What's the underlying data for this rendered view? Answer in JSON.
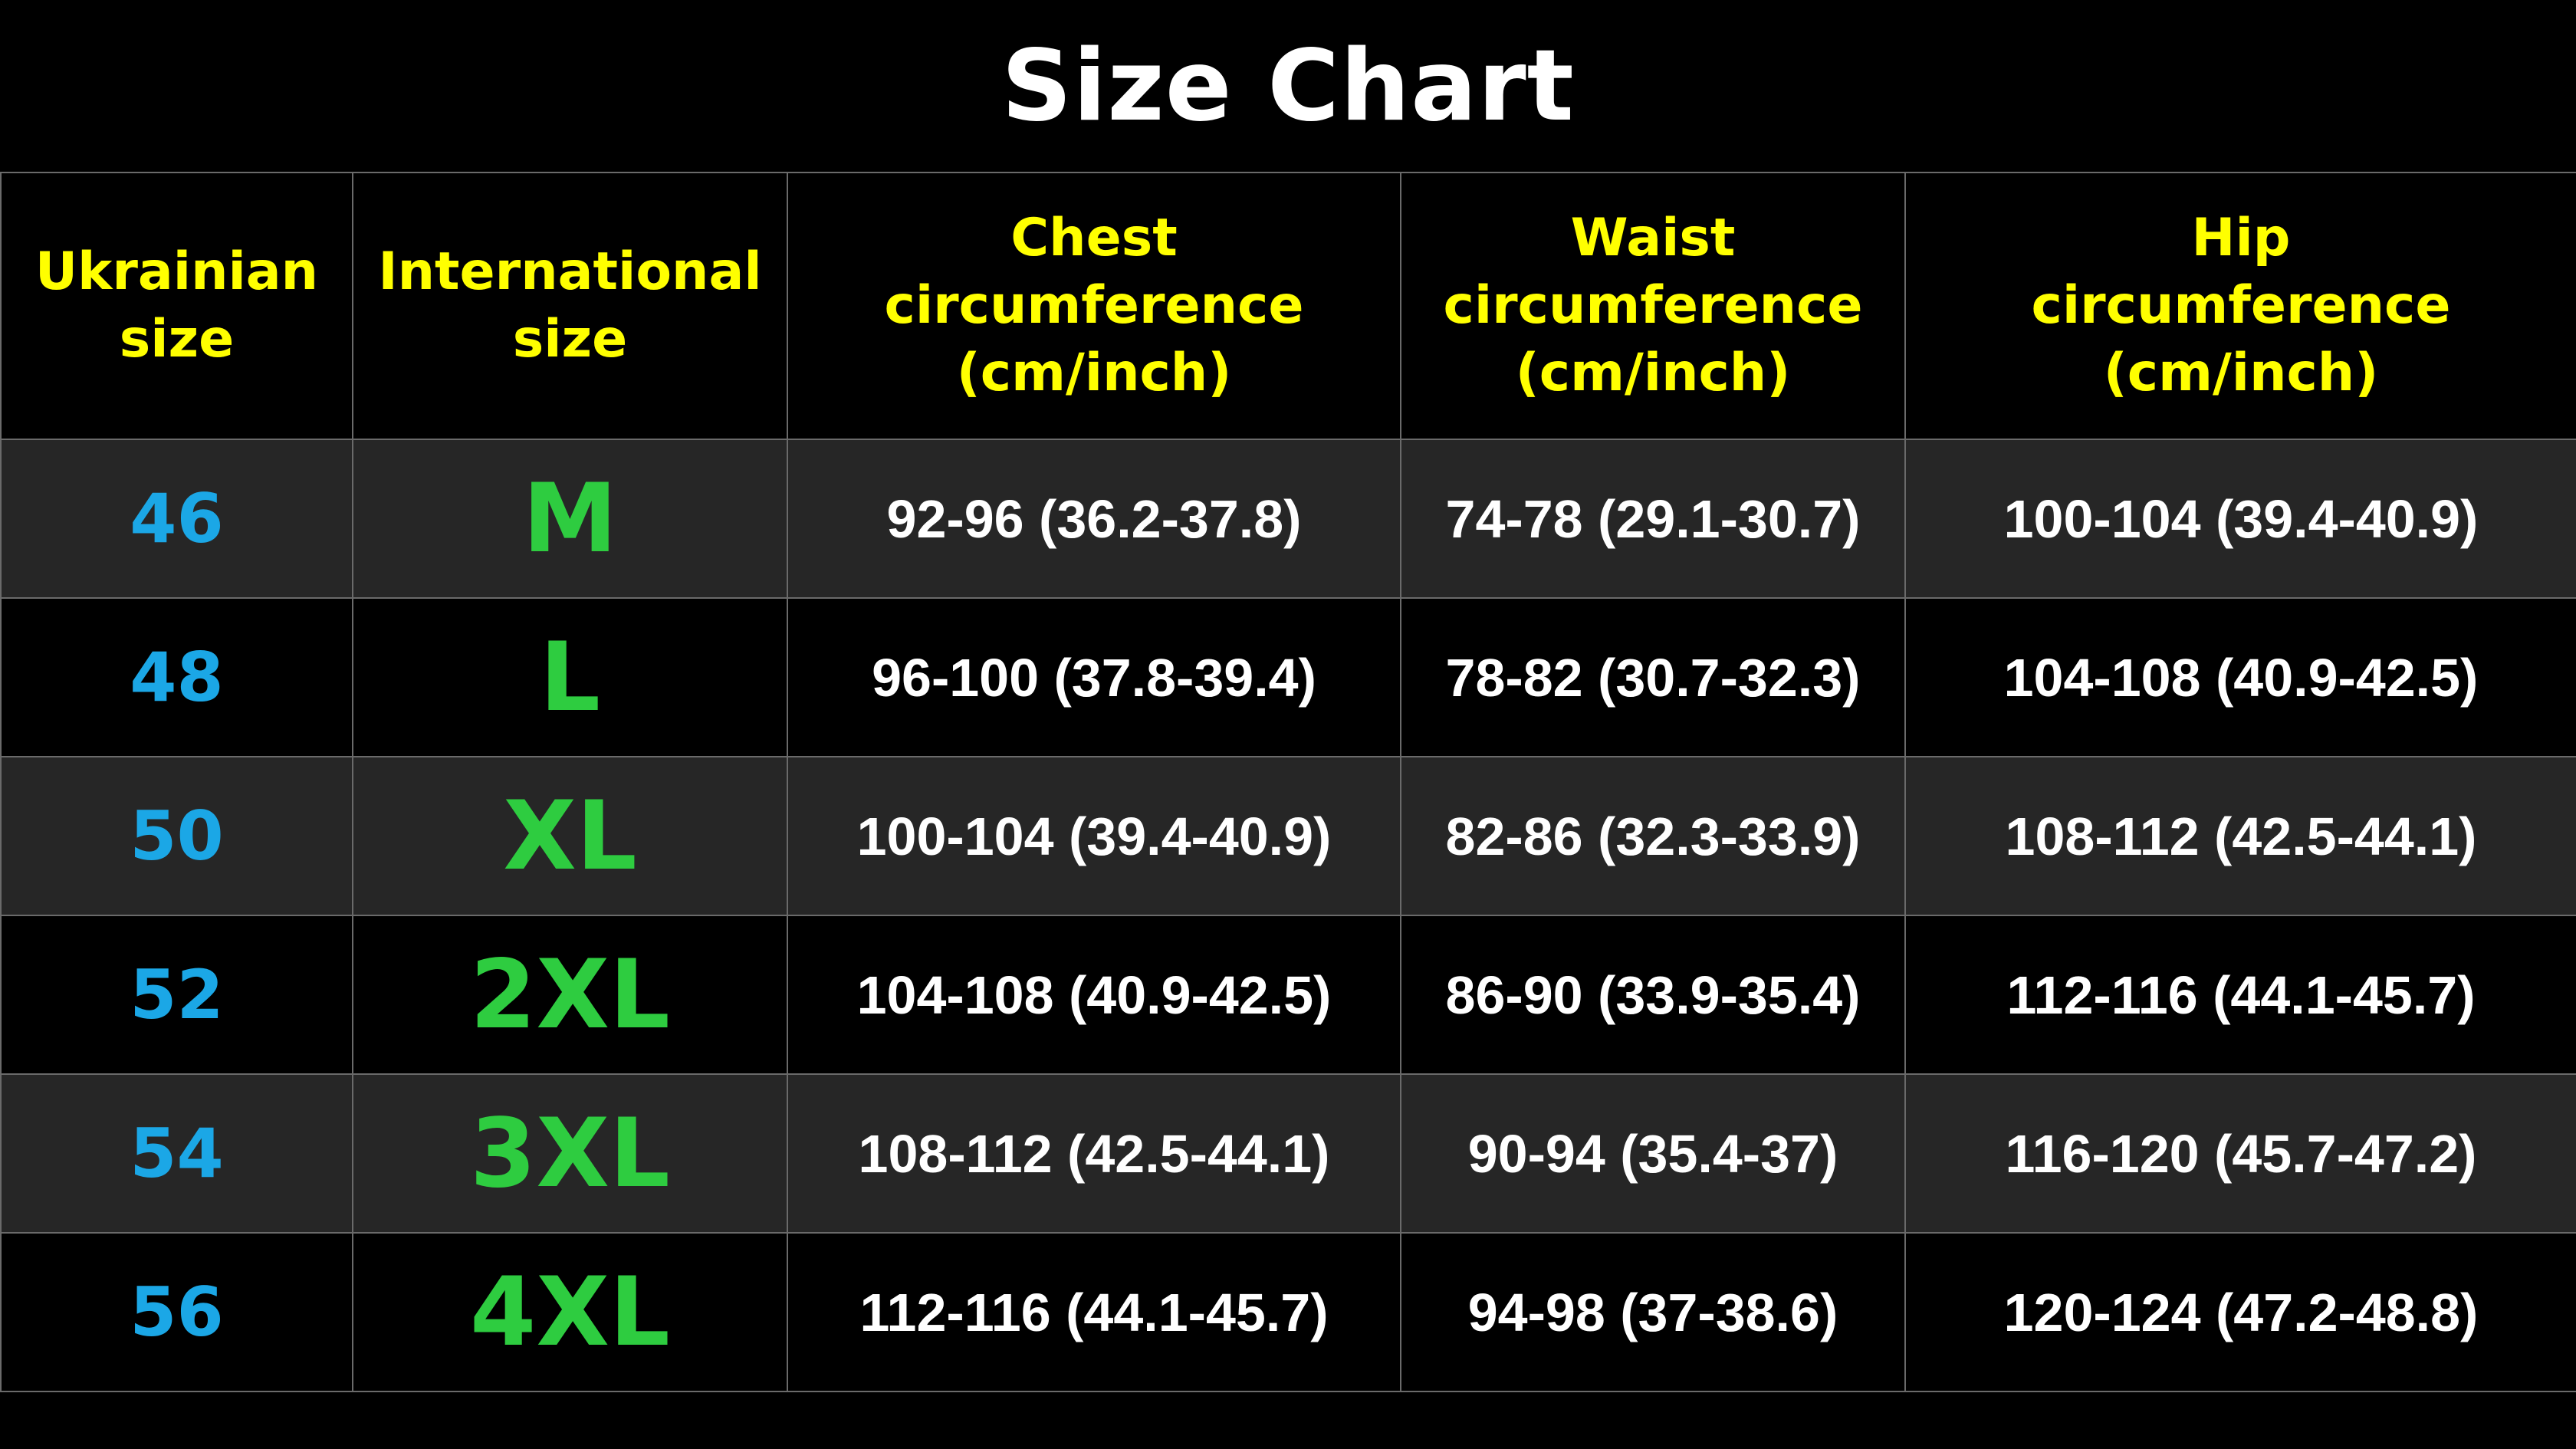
{
  "title": "Size Chart",
  "colors": {
    "background": "#000000",
    "header_text": "#ffff00",
    "ukrainian_size": "#1ba7e6",
    "international_size": "#2ecc40",
    "measurement_text": "#ffffff",
    "row_alt": "#262626"
  },
  "table": {
    "headers": [
      [
        "Ukrainian",
        "size"
      ],
      [
        "International",
        "size"
      ],
      [
        "Chest",
        "circumference",
        "(cm/inch)"
      ],
      [
        "Waist",
        "circumference",
        "(cm/inch)"
      ],
      [
        "Hip",
        "circumference",
        "(cm/inch)"
      ]
    ],
    "rows": [
      {
        "ua": "46",
        "intl": "M",
        "chest": "92-96 (36.2-37.8)",
        "waist": "74-78 (29.1-30.7)",
        "hip": "100-104 (39.4-40.9)"
      },
      {
        "ua": "48",
        "intl": "L",
        "chest": "96-100 (37.8-39.4)",
        "waist": "78-82 (30.7-32.3)",
        "hip": "104-108 (40.9-42.5)"
      },
      {
        "ua": "50",
        "intl": "XL",
        "chest": "100-104 (39.4-40.9)",
        "waist": "82-86 (32.3-33.9)",
        "hip": "108-112 (42.5-44.1)"
      },
      {
        "ua": "52",
        "intl": "2XL",
        "chest": "104-108 (40.9-42.5)",
        "waist": "86-90 (33.9-35.4)",
        "hip": "112-116 (44.1-45.7)"
      },
      {
        "ua": "54",
        "intl": "3XL",
        "chest": "108-112 (42.5-44.1)",
        "waist": "90-94 (35.4-37)",
        "hip": "116-120 (45.7-47.2)"
      },
      {
        "ua": "56",
        "intl": "4XL",
        "chest": "112-116 (44.1-45.7)",
        "waist": "94-98 (37-38.6)",
        "hip": "120-124 (47.2-48.8)"
      }
    ]
  }
}
